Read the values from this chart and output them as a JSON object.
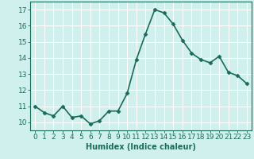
{
  "x": [
    0,
    1,
    2,
    3,
    4,
    5,
    6,
    7,
    8,
    9,
    10,
    11,
    12,
    13,
    14,
    15,
    16,
    17,
    18,
    19,
    20,
    21,
    22,
    23
  ],
  "y": [
    11.0,
    10.6,
    10.4,
    11.0,
    10.3,
    10.4,
    9.9,
    10.1,
    10.7,
    10.7,
    11.8,
    13.9,
    15.5,
    17.0,
    16.8,
    16.1,
    15.1,
    14.3,
    13.9,
    13.7,
    14.1,
    13.1,
    12.9,
    12.4
  ],
  "line_color": "#1a6b5a",
  "marker": "D",
  "marker_size": 2.5,
  "bg_color": "#cff0ec",
  "grid_color": "#ffffff",
  "xlabel": "Humidex (Indice chaleur)",
  "xlim": [
    -0.5,
    23.5
  ],
  "ylim": [
    9.5,
    17.5
  ],
  "xticks": [
    0,
    1,
    2,
    3,
    4,
    5,
    6,
    7,
    8,
    9,
    10,
    11,
    12,
    13,
    14,
    15,
    16,
    17,
    18,
    19,
    20,
    21,
    22,
    23
  ],
  "yticks": [
    10,
    11,
    12,
    13,
    14,
    15,
    16,
    17
  ],
  "tick_label_color": "#1a6b5a",
  "axis_color": "#1a6b5a",
  "xlabel_color": "#1a6b5a",
  "xlabel_fontsize": 7,
  "tick_fontsize": 6.5,
  "linewidth": 1.2
}
